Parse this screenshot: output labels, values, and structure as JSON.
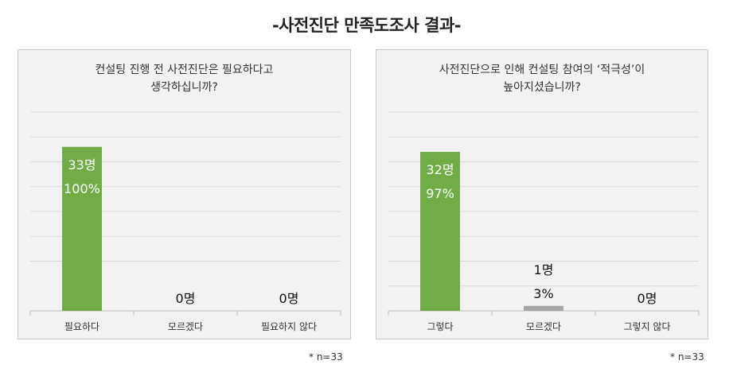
{
  "page_title": "-사전진단 만족도조사 결과-",
  "colors": {
    "bar_main": "#70ad47",
    "bar_minor": "#a6a6a6",
    "panel_bg": "#f2f2f2",
    "grid": "#d9d9d9"
  },
  "chart_data": [
    {
      "type": "bar",
      "title_lines": [
        "컨설팅 진행 전 사전진단은 필요하다고",
        "생각하십니까?"
      ],
      "categories": [
        "필요하다",
        "모르겠다",
        "필요하지 않다"
      ],
      "values": [
        33,
        0,
        0
      ],
      "data_labels": [
        [
          "33명",
          "100%"
        ],
        [
          "0명"
        ],
        [
          "0명"
        ]
      ],
      "ylim": [
        0,
        40
      ],
      "grid": true,
      "note": "* n=33"
    },
    {
      "type": "bar",
      "title_lines": [
        "사전진단으로 인해 컨설팅 참여의 ‘적극성’이",
        "높아지셨습니까?"
      ],
      "categories": [
        "그렇다",
        "모르겠다",
        "그렇지 않다"
      ],
      "values": [
        32,
        1,
        0
      ],
      "data_labels": [
        [
          "32명",
          "97%"
        ],
        [
          "1명",
          "3%"
        ],
        [
          "0명"
        ]
      ],
      "ylim": [
        0,
        40
      ],
      "grid": true,
      "note": "* n=33"
    }
  ]
}
